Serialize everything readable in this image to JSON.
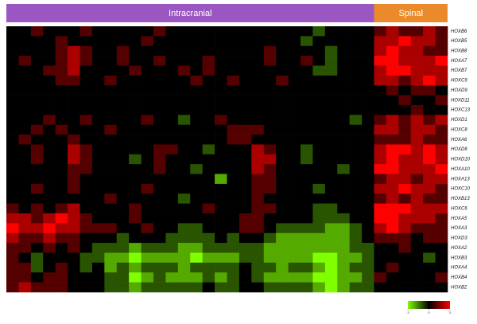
{
  "chart_data": {
    "type": "heatmap",
    "groups": [
      {
        "label": "Intracranial",
        "color": "#9a57c2",
        "size": 30
      },
      {
        "label": "Spinal",
        "color": "#ea8a2a",
        "size": 6
      }
    ],
    "rows": [
      "HOXB6",
      "HOXB5",
      "HOXB8",
      "HOXA7",
      "HOXB7",
      "HOXC9",
      "HOXD9",
      "HOXD11",
      "HOXC13",
      "HOXD1",
      "HOXC8",
      "HOXA6",
      "HOXD8",
      "HOXD10",
      "HOXA10",
      "HOXA13",
      "HOXC10",
      "HOXB13",
      "HOXC6",
      "HOXA5",
      "HOXA3",
      "HOXD3",
      "HOXA2",
      "HOXB3",
      "HOXA4",
      "HOXB4",
      "HOXB2"
    ],
    "colors": {
      "low": "#7fff00",
      "mid": "#000000",
      "high": "#ff0000"
    },
    "zlim": [
      -3,
      3
    ],
    "zticks": [
      -3,
      0,
      3
    ],
    "values": [
      [
        0,
        0,
        1,
        0,
        0,
        0,
        1,
        0,
        0,
        0,
        0,
        0,
        1,
        0,
        0,
        0,
        0,
        0,
        0,
        0,
        0,
        0,
        0,
        0,
        0,
        -1,
        0,
        0,
        0,
        0,
        1,
        2,
        1,
        1,
        2,
        1
      ],
      [
        0,
        0,
        0,
        0,
        1,
        0,
        0,
        0,
        0,
        0,
        0,
        1,
        0,
        0,
        0,
        0,
        0,
        0,
        0,
        0,
        0,
        0,
        0,
        0,
        -1,
        0,
        0,
        0,
        0,
        0,
        2,
        2,
        3,
        2,
        2,
        1
      ],
      [
        0,
        0,
        0,
        0,
        1,
        2,
        1,
        0,
        0,
        1,
        0,
        0,
        0,
        0,
        0,
        0,
        0,
        0,
        0,
        0,
        0,
        1,
        0,
        0,
        0,
        0,
        -1,
        0,
        0,
        0,
        2,
        3,
        2,
        2,
        1,
        1
      ],
      [
        0,
        1,
        0,
        0,
        1,
        2,
        1,
        0,
        0,
        1,
        0,
        0,
        1,
        0,
        0,
        0,
        1,
        0,
        0,
        0,
        0,
        1,
        0,
        0,
        1,
        0,
        -1,
        0,
        0,
        0,
        3,
        3,
        2,
        2,
        2,
        3
      ],
      [
        0,
        0,
        0,
        1,
        1,
        2,
        0,
        0,
        0,
        0,
        1,
        0,
        0,
        0,
        1,
        0,
        1,
        0,
        0,
        0,
        0,
        0,
        0,
        0,
        0,
        -1,
        -1,
        0,
        0,
        0,
        2,
        3,
        3,
        2,
        2,
        2
      ],
      [
        0,
        0,
        0,
        0,
        1,
        1,
        0,
        0,
        1,
        0,
        0,
        0,
        0,
        0,
        0,
        1,
        0,
        0,
        1,
        0,
        0,
        0,
        1,
        0,
        0,
        0,
        0,
        0,
        0,
        0,
        2,
        2,
        1,
        2,
        3,
        2
      ],
      [
        0,
        0,
        0,
        0,
        0,
        0,
        0,
        0,
        0,
        0,
        0,
        0,
        0,
        0,
        0,
        0,
        0,
        0,
        0,
        0,
        0,
        0,
        0,
        0,
        0,
        0,
        0,
        0,
        0,
        0,
        0,
        1,
        0,
        1,
        1,
        0
      ],
      [
        0,
        0,
        0,
        0,
        0,
        0,
        0,
        0,
        0,
        0,
        0,
        0,
        0,
        0,
        0,
        0,
        0,
        0,
        0,
        0,
        0,
        0,
        0,
        0,
        0,
        0,
        0,
        0,
        0,
        0,
        0,
        0,
        1,
        0,
        0,
        1
      ],
      [
        0,
        0,
        0,
        0,
        0,
        0,
        0,
        0,
        0,
        0,
        0,
        0,
        0,
        0,
        0,
        0,
        0,
        0,
        0,
        0,
        0,
        0,
        0,
        0,
        0,
        0,
        0,
        0,
        0,
        0,
        0,
        0,
        0,
        1,
        0,
        0
      ],
      [
        0,
        0,
        0,
        1,
        0,
        0,
        1,
        0,
        0,
        0,
        0,
        1,
        0,
        0,
        -1,
        0,
        0,
        1,
        0,
        0,
        0,
        0,
        0,
        0,
        0,
        0,
        0,
        0,
        -1,
        0,
        1,
        2,
        1,
        2,
        1,
        2
      ],
      [
        0,
        0,
        1,
        0,
        1,
        0,
        0,
        0,
        1,
        0,
        0,
        0,
        0,
        0,
        0,
        0,
        0,
        0,
        1,
        1,
        1,
        0,
        0,
        0,
        0,
        0,
        0,
        0,
        0,
        0,
        2,
        2,
        1,
        2,
        2,
        1
      ],
      [
        0,
        1,
        0,
        0,
        0,
        1,
        0,
        0,
        0,
        0,
        0,
        0,
        0,
        0,
        0,
        0,
        0,
        0,
        1,
        1,
        0,
        0,
        0,
        0,
        0,
        0,
        0,
        0,
        0,
        0,
        1,
        1,
        1,
        2,
        1,
        1
      ],
      [
        0,
        0,
        1,
        0,
        0,
        2,
        1,
        0,
        0,
        0,
        0,
        0,
        1,
        1,
        0,
        0,
        -1,
        0,
        0,
        0,
        2,
        1,
        0,
        0,
        -1,
        0,
        0,
        0,
        0,
        0,
        2,
        3,
        3,
        2,
        3,
        2
      ],
      [
        0,
        0,
        1,
        0,
        0,
        2,
        1,
        0,
        0,
        0,
        -1,
        0,
        1,
        0,
        0,
        0,
        0,
        0,
        0,
        0,
        2,
        2,
        0,
        0,
        -1,
        0,
        0,
        0,
        0,
        0,
        2,
        3,
        2,
        2,
        3,
        2
      ],
      [
        0,
        0,
        0,
        0,
        0,
        1,
        1,
        0,
        0,
        0,
        0,
        0,
        1,
        0,
        0,
        -1,
        0,
        0,
        0,
        0,
        2,
        1,
        0,
        0,
        0,
        0,
        0,
        -1,
        0,
        0,
        3,
        3,
        2,
        2,
        2,
        3
      ],
      [
        0,
        0,
        0,
        0,
        0,
        1,
        0,
        0,
        0,
        0,
        0,
        0,
        0,
        0,
        0,
        0,
        0,
        -2,
        0,
        0,
        1,
        1,
        0,
        0,
        0,
        0,
        0,
        0,
        0,
        0,
        1,
        2,
        2,
        1,
        2,
        2
      ],
      [
        0,
        0,
        1,
        0,
        0,
        1,
        0,
        0,
        0,
        0,
        0,
        1,
        0,
        0,
        0,
        0,
        0,
        0,
        0,
        0,
        1,
        1,
        0,
        0,
        0,
        -1,
        0,
        0,
        0,
        0,
        2,
        2,
        3,
        2,
        2,
        1
      ],
      [
        0,
        0,
        0,
        0,
        0,
        0,
        0,
        0,
        1,
        0,
        0,
        0,
        0,
        0,
        -1,
        0,
        0,
        0,
        0,
        0,
        1,
        0,
        0,
        0,
        0,
        0,
        0,
        0,
        0,
        0,
        1,
        2,
        1,
        2,
        1,
        1
      ],
      [
        1,
        0,
        1,
        0,
        1,
        2,
        0,
        0,
        0,
        0,
        1,
        0,
        0,
        0,
        0,
        0,
        1,
        0,
        0,
        0,
        1,
        1,
        0,
        0,
        0,
        -1,
        -1,
        0,
        0,
        0,
        3,
        3,
        3,
        2,
        2,
        2
      ],
      [
        2,
        2,
        1,
        2,
        3,
        2,
        1,
        0,
        0,
        0,
        1,
        0,
        0,
        0,
        0,
        0,
        0,
        0,
        0,
        1,
        1,
        0,
        0,
        0,
        0,
        -1,
        -1,
        -1,
        0,
        0,
        3,
        3,
        2,
        2,
        2,
        1
      ],
      [
        3,
        2,
        2,
        3,
        2,
        2,
        1,
        1,
        1,
        0,
        0,
        1,
        0,
        0,
        -1,
        -1,
        0,
        0,
        0,
        1,
        1,
        0,
        -1,
        -1,
        -1,
        -1,
        -2,
        -2,
        -1,
        0,
        2,
        3,
        2,
        1,
        1,
        1
      ],
      [
        2,
        1,
        1,
        2,
        1,
        1,
        0,
        0,
        0,
        -1,
        0,
        0,
        0,
        -1,
        -1,
        -1,
        -1,
        0,
        -1,
        0,
        0,
        -1,
        -2,
        -2,
        -2,
        -2,
        -2,
        -2,
        -1,
        0,
        1,
        1,
        1,
        0,
        1,
        1
      ],
      [
        1,
        1,
        0,
        1,
        0,
        1,
        0,
        -1,
        -1,
        -1,
        -2,
        -1,
        -1,
        -1,
        -2,
        -2,
        -1,
        -1,
        -1,
        -1,
        -1,
        -2,
        -2,
        -2,
        -2,
        -2,
        -2,
        -2,
        -1,
        -1,
        0,
        0,
        1,
        0,
        0,
        0
      ],
      [
        1,
        0,
        -1,
        0,
        0,
        0,
        -1,
        -1,
        -2,
        -2,
        -3,
        -2,
        -2,
        -2,
        -2,
        -3,
        -2,
        -2,
        -2,
        -1,
        -1,
        -2,
        -2,
        -2,
        -2,
        -3,
        -3,
        -2,
        -2,
        -1,
        0,
        0,
        0,
        0,
        -1,
        0
      ],
      [
        1,
        1,
        -1,
        0,
        1,
        0,
        -1,
        0,
        -2,
        -1,
        -2,
        -1,
        -1,
        -1,
        -2,
        -1,
        -1,
        -1,
        -1,
        0,
        -1,
        -1,
        -2,
        -1,
        -1,
        -2,
        -3,
        -2,
        -1,
        -1,
        0,
        1,
        0,
        0,
        0,
        0
      ],
      [
        1,
        1,
        0,
        1,
        1,
        0,
        0,
        0,
        -1,
        -1,
        -3,
        -2,
        -1,
        -2,
        -2,
        -2,
        -1,
        -2,
        -1,
        0,
        -1,
        -2,
        -2,
        -2,
        -2,
        -3,
        -3,
        -2,
        -2,
        -1,
        1,
        0,
        0,
        0,
        0,
        1
      ],
      [
        1,
        2,
        1,
        1,
        1,
        0,
        0,
        0,
        -1,
        -1,
        -2,
        -1,
        -1,
        -1,
        -1,
        -1,
        0,
        -1,
        -1,
        0,
        0,
        -1,
        -1,
        -1,
        -1,
        -2,
        -3,
        -2,
        -1,
        -1,
        0,
        0,
        0,
        0,
        0,
        0
      ]
    ]
  }
}
